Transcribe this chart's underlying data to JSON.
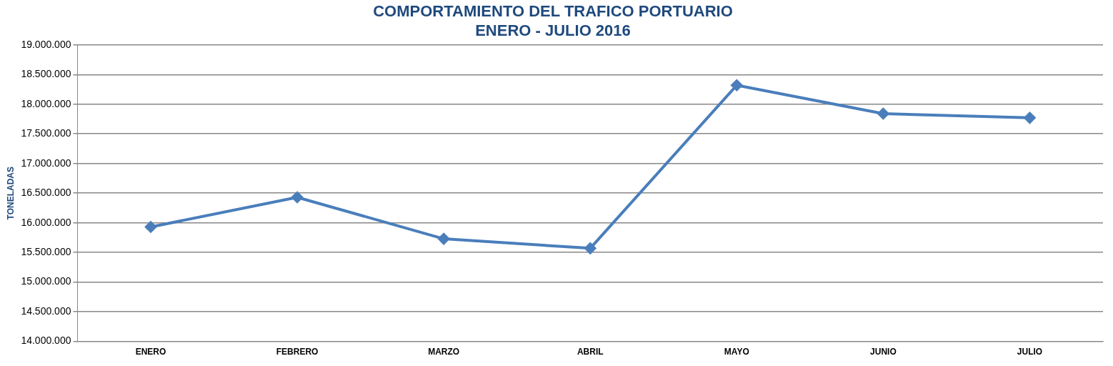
{
  "chart_data": {
    "type": "line",
    "title": [
      "COMPORTAMIENTO DEL TRAFICO PORTUARIO",
      "ENERO - JULIO 2016"
    ],
    "ylabel": "TONELADAS",
    "categories": [
      "ENERO",
      "FEBRERO",
      "MARZO",
      "ABRIL",
      "MAYO",
      "JUNIO",
      "JULIO"
    ],
    "series": [
      {
        "color": "#4a7ebb",
        "values": [
          15930000,
          16430000,
          15730000,
          15570000,
          18320000,
          17840000,
          17770000
        ]
      }
    ],
    "ylim": [
      14000000,
      19000000
    ],
    "yticks": [
      {
        "value": 14000000,
        "label": "14.000.000"
      },
      {
        "value": 14500000,
        "label": "14.500.000"
      },
      {
        "value": 15000000,
        "label": "15.000.000"
      },
      {
        "value": 15500000,
        "label": "15.500.000"
      },
      {
        "value": 16000000,
        "label": "16.000.000"
      },
      {
        "value": 16500000,
        "label": "16.500.000"
      },
      {
        "value": 17000000,
        "label": "17.000.000"
      },
      {
        "value": 17500000,
        "label": "17.500.000"
      },
      {
        "value": 18000000,
        "label": "18.000.000"
      },
      {
        "value": 18500000,
        "label": "18.500.000"
      },
      {
        "value": 19000000,
        "label": "19.000.000"
      }
    ],
    "grid": "y",
    "legend": false,
    "marker": "diamond",
    "line_style": "solid"
  }
}
